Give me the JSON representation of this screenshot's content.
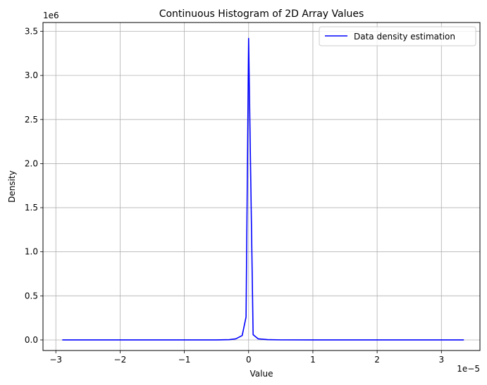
{
  "chart_data": {
    "type": "line",
    "title": "Continuous Histogram of 2D Array Values",
    "xlabel": "Value",
    "ylabel": "Density",
    "x_offset_label": "1e−5",
    "y_offset_label": "1e6",
    "xlim": [
      -3.2e-05,
      3.6e-05
    ],
    "ylim": [
      -120000,
      3600000
    ],
    "x_ticks": [
      -3e-05,
      -2e-05,
      -1e-05,
      0,
      1e-05,
      2e-05,
      3e-05
    ],
    "x_tick_labels": [
      "−3",
      "−2",
      "−1",
      "0",
      "1",
      "2",
      "3"
    ],
    "y_ticks": [
      0,
      500000,
      1000000,
      1500000,
      2000000,
      2500000,
      3000000,
      3500000
    ],
    "y_tick_labels": [
      "0.0",
      "0.5",
      "1.0",
      "1.5",
      "2.0",
      "2.5",
      "3.0",
      "3.5"
    ],
    "grid": true,
    "legend_position": "top-right",
    "series": [
      {
        "name": "Data density estimation",
        "color": "#0000ff",
        "x": [
          -2.9e-05,
          -5e-06,
          -3e-06,
          -2e-06,
          -1e-06,
          -4e-07,
          0.0,
          7e-07,
          1.5e-06,
          3e-06,
          5e-06,
          1e-05,
          3.35e-05
        ],
        "y": [
          0,
          0,
          3000,
          12000,
          50000,
          260000,
          3420000,
          60000,
          12000,
          3000,
          800,
          0,
          0
        ]
      }
    ]
  }
}
